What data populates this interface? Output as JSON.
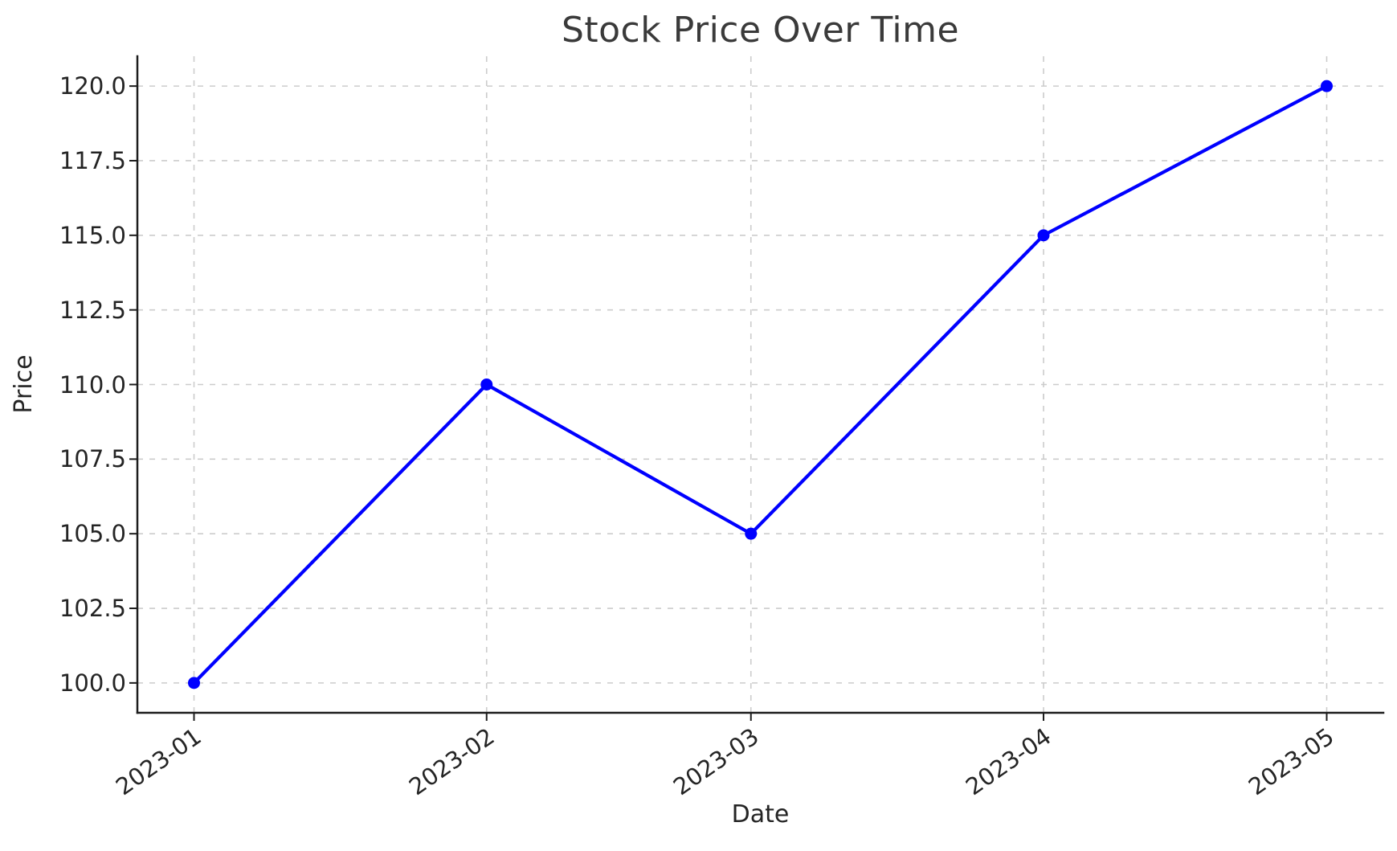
{
  "chart_data": {
    "type": "line",
    "title": "Stock Price Over Time",
    "xlabel": "Date",
    "ylabel": "Price",
    "categories": [
      "2023-01",
      "2023-02",
      "2023-03",
      "2023-04",
      "2023-05"
    ],
    "values": [
      100.0,
      110.0,
      105.0,
      115.0,
      120.0
    ],
    "series": [
      {
        "name": "Price",
        "values": [
          100.0,
          110.0,
          105.0,
          115.0,
          120.0
        ]
      }
    ],
    "x_axis_type": "date",
    "ylim": [
      99,
      121
    ],
    "yticks": [
      100.0,
      102.5,
      105.0,
      107.5,
      110.0,
      112.5,
      115.0,
      117.5,
      120.0
    ],
    "ytick_labels": [
      "100.0",
      "102.5",
      "105.0",
      "107.5",
      "110.0",
      "112.5",
      "115.0",
      "117.5",
      "120.0"
    ],
    "xtick_labels": [
      "2023-01",
      "2023-02",
      "2023-03",
      "2023-04",
      "2023-05"
    ],
    "grid": true,
    "grid_style": "dashed",
    "legend": false,
    "marker": "circle",
    "line_color": "#0000ff",
    "marker_color": "#0000ff",
    "grid_color": "#cccccc",
    "background_color": "#ffffff"
  }
}
